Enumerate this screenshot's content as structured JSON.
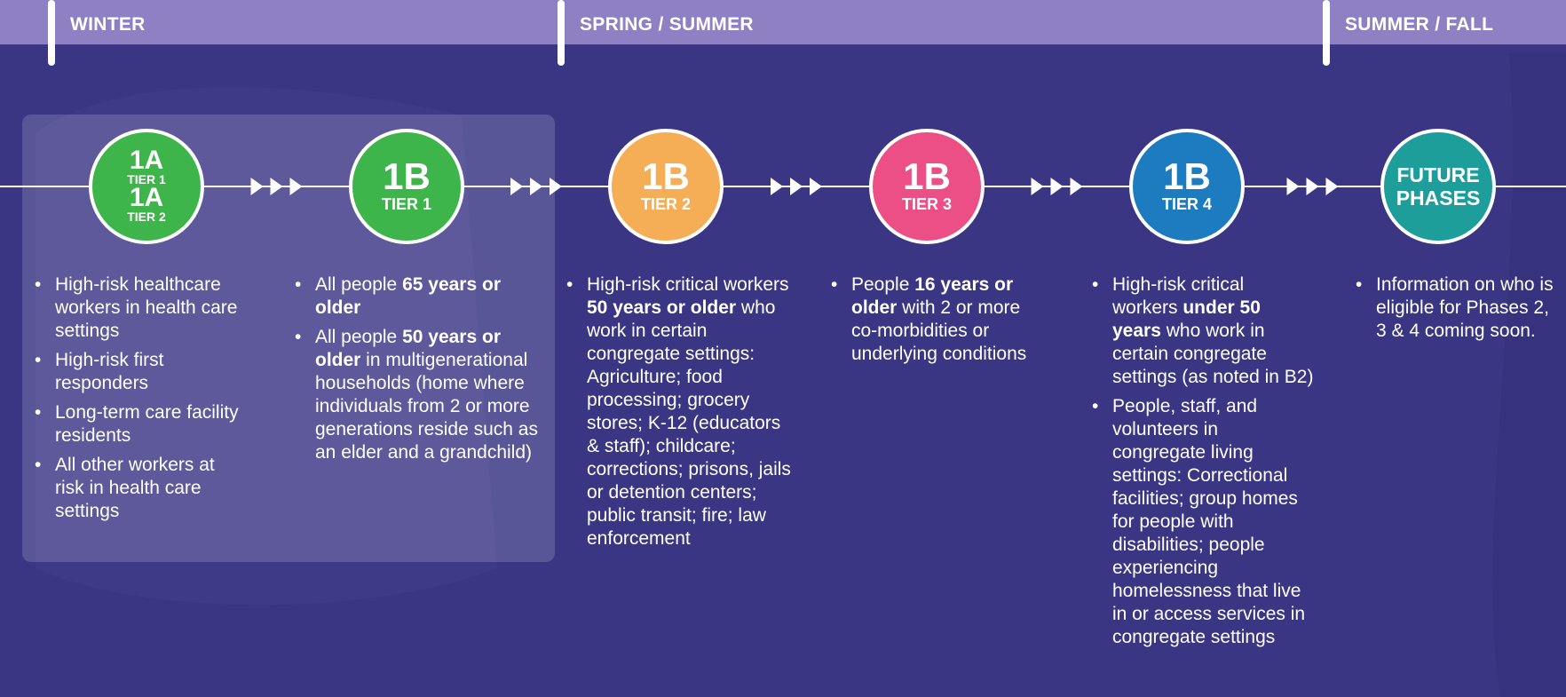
{
  "seasons": [
    "WINTER",
    "SPRING / SUMMER",
    "SUMMER / FALL"
  ],
  "phases": [
    {
      "color": "#3db54a",
      "labels": [
        {
          "code": "1A",
          "tier": "TIER 1"
        },
        {
          "code": "1A",
          "tier": "TIER 2"
        }
      ],
      "bullets": [
        [
          {
            "text": "High-risk healthcare workers in health care settings",
            "bold": false
          }
        ],
        [
          {
            "text": "High-risk first responders",
            "bold": false
          }
        ],
        [
          {
            "text": "Long-term care facility residents",
            "bold": false
          }
        ],
        [
          {
            "text": "All other workers at risk in health care settings",
            "bold": false
          }
        ]
      ]
    },
    {
      "color": "#3db54a",
      "labels": [
        {
          "code": "1B",
          "tier": "TIER 1"
        }
      ],
      "bullets": [
        [
          {
            "text": "All people ",
            "bold": false
          },
          {
            "text": "65 years or older",
            "bold": true
          }
        ],
        [
          {
            "text": "All people ",
            "bold": false
          },
          {
            "text": "50 years or older",
            "bold": true
          },
          {
            "text": " in multigenerational households (home where individuals from 2 or more generations reside such as an elder and a grandchild)",
            "bold": false
          }
        ]
      ]
    },
    {
      "color": "#f5ad56",
      "labels": [
        {
          "code": "1B",
          "tier": "TIER 2"
        }
      ],
      "bullets": [
        [
          {
            "text": "High-risk critical workers ",
            "bold": false
          },
          {
            "text": "50 years or older",
            "bold": true
          },
          {
            "text": " who work in certain congregate settings: Agriculture; food processing; grocery stores; K-12 (educators & staff); childcare; corrections; prisons, jails or detention centers; public transit; fire; law enforcement",
            "bold": false
          }
        ]
      ]
    },
    {
      "color": "#ec4f86",
      "labels": [
        {
          "code": "1B",
          "tier": "TIER 3"
        }
      ],
      "bullets": [
        [
          {
            "text": "People ",
            "bold": false
          },
          {
            "text": "16 years or older",
            "bold": true
          },
          {
            "text": " with 2 or more co-morbidities or underlying conditions",
            "bold": false
          }
        ]
      ]
    },
    {
      "color": "#1d7cc0",
      "labels": [
        {
          "code": "1B",
          "tier": "TIER 4"
        }
      ],
      "bullets": [
        [
          {
            "text": "High-risk critical workers ",
            "bold": false
          },
          {
            "text": "under 50 years",
            "bold": true
          },
          {
            "text": " who work in certain congregate settings (as noted in B2)",
            "bold": false
          }
        ],
        [
          {
            "text": "People, staff, and volunteers in congregate living settings: Correctional facilities; group homes for people with disabilities; people experiencing homelessness that live in or access services in congregate settings",
            "bold": false
          }
        ]
      ]
    },
    {
      "color": "#1e9e9a",
      "labels": [
        {
          "code": "FUTURE PHASES"
        }
      ],
      "bullets": [
        [
          {
            "text": "Information on who is eligible for Phases 2, 3 & 4 coming soon.",
            "bold": false
          }
        ]
      ]
    }
  ]
}
